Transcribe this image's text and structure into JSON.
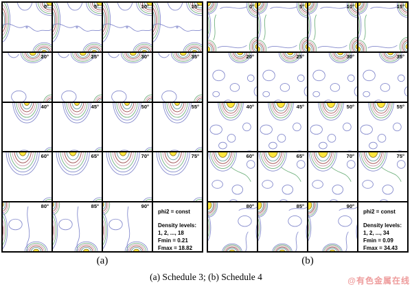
{
  "figure": {
    "caption": "(a) Schedule 3; (b) Schedule 4",
    "watermark": "@有色金属在线"
  },
  "colors": {
    "rings_outer_to_inner": [
      "#8288cc",
      "#6fb07c",
      "#cc9aaa",
      "#9c4a4a",
      "#5f9898"
    ],
    "core_fill": "#ffe63c",
    "core_stroke": "#8a7a2a",
    "wave_blue": "#8288cc",
    "wave_green": "#6fb07c",
    "grid_line": "#000000",
    "watermark_color": "#ee9c9c"
  },
  "panels": [
    {
      "label": "(a)",
      "schedule": "Schedule 3",
      "sections": [
        "0°",
        "5°",
        "10°",
        "15°",
        "20°",
        "25°",
        "30°",
        "35°",
        "40°",
        "45°",
        "50°",
        "55°",
        "60°",
        "65°",
        "70°",
        "75°",
        "80°",
        "85°",
        "90°"
      ],
      "info_box": {
        "lines": [
          "phi2 = const",
          "Density levels:",
          "1, 2, ..., 18",
          "Fmin = 0.21",
          "Fmax = 18.82"
        ]
      }
    },
    {
      "label": "(b)",
      "schedule": "Schedule 4",
      "sections": [
        "0°",
        "5°",
        "10°",
        "15°",
        "20°",
        "25°",
        "30°",
        "35°",
        "40°",
        "45°",
        "50°",
        "55°",
        "60°",
        "65°",
        "70°",
        "75°",
        "80°",
        "85°",
        "90°"
      ],
      "info_box": {
        "lines": [
          "phi2 = const",
          "Density levels:",
          "1, 2, ..., 34",
          "Fmin = 0.09",
          "Fmax = 34.43"
        ]
      }
    }
  ],
  "chart_data": [
    {
      "type": "heatmap",
      "subtype": "ODF-contour-section-grid",
      "panel": "(a)",
      "title": "Schedule 3",
      "sections_deg": [
        0,
        5,
        10,
        15,
        20,
        25,
        30,
        35,
        40,
        45,
        50,
        55,
        60,
        65,
        70,
        75,
        80,
        85,
        90
      ],
      "section_variable": "phi2 = const",
      "density_levels_label": "1, 2, ..., 18",
      "density_levels": 18,
      "fmin": 0.21,
      "fmax": 18.82,
      "grid_layout": {
        "rows": 5,
        "cols": 4,
        "last_cell": "info-box"
      }
    },
    {
      "type": "heatmap",
      "subtype": "ODF-contour-section-grid",
      "panel": "(b)",
      "title": "Schedule 4",
      "sections_deg": [
        0,
        5,
        10,
        15,
        20,
        25,
        30,
        35,
        40,
        45,
        50,
        55,
        60,
        65,
        70,
        75,
        80,
        85,
        90
      ],
      "section_variable": "phi2 = const",
      "density_levels_label": "1, 2, ..., 34",
      "density_levels": 34,
      "fmin": 0.09,
      "fmax": 34.43,
      "grid_layout": {
        "rows": 5,
        "cols": 4,
        "last_cell": "info-box"
      }
    }
  ]
}
